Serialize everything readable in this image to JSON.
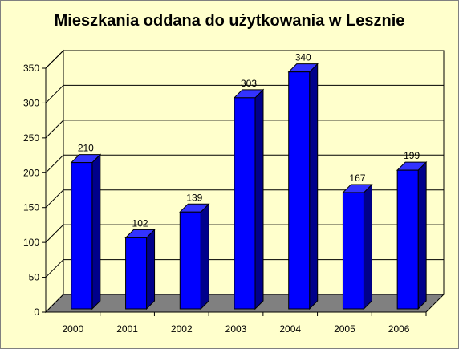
{
  "chart_data": {
    "type": "bar",
    "title": "Mieszkania oddana do użytkowania w Lesznie",
    "xlabel": "",
    "ylabel": "",
    "categories": [
      "2000",
      "2001",
      "2002",
      "2003",
      "2004",
      "2005",
      "2006"
    ],
    "values": [
      210,
      102,
      139,
      303,
      340,
      167,
      199
    ],
    "ylim": [
      0,
      350
    ],
    "yticks": [
      "0",
      "50",
      "100",
      "150",
      "200",
      "250",
      "300",
      "350"
    ],
    "grid": true,
    "legend": "none",
    "bar_style": "3d-column"
  },
  "colors": {
    "background": "#FFFFCC",
    "bar_front": "#0000FF",
    "bar_side": "#00008B",
    "bar_top": "#3333FF",
    "floor": "#808080",
    "wall": "#FFFFCC"
  }
}
